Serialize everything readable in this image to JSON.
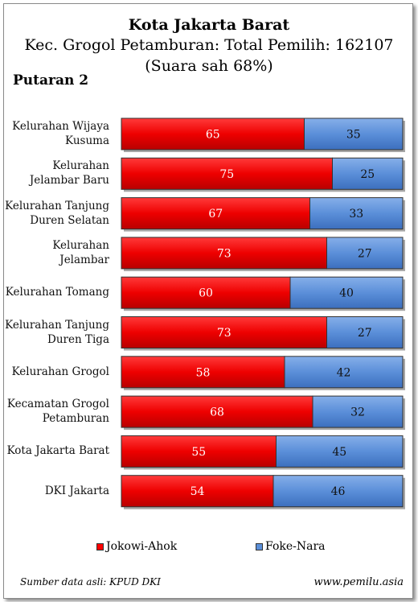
{
  "header": {
    "title": "Kota Jakarta Barat",
    "subtitle": "Kec. Grogol Petamburan: Total Pemilih: 162107",
    "subtitle2": "(Suara sah 68%)",
    "round_label": "Putaran 2"
  },
  "chart_data": {
    "type": "bar",
    "orientation": "horizontal",
    "stacked": true,
    "categories": [
      "Kelurahan Wijaya Kusuma",
      "Kelurahan Jelambar Baru",
      "Kelurahan Tanjung Duren Selatan",
      "Kelurahan Jelambar",
      "Kelurahan Tomang",
      "Kelurahan Tanjung Duren Tiga",
      "Kelurahan Grogol",
      "Kecamatan Grogol Petamburan",
      "Kota Jakarta Barat",
      "DKI Jakarta"
    ],
    "series": [
      {
        "name": "Jokowi-Ahok",
        "color": "#ff0000",
        "values": [
          65,
          75,
          67,
          73,
          60,
          73,
          58,
          68,
          55,
          54
        ]
      },
      {
        "name": "Foke-Nara",
        "color": "#5b8fd9",
        "values": [
          35,
          25,
          33,
          27,
          40,
          27,
          42,
          32,
          45,
          46
        ]
      }
    ],
    "xlim": [
      0,
      100
    ],
    "legend_position": "bottom",
    "grid": false
  },
  "footer": {
    "source": "Sumber data asli: KPUD DKI",
    "site": "www.pemilu.asia"
  }
}
